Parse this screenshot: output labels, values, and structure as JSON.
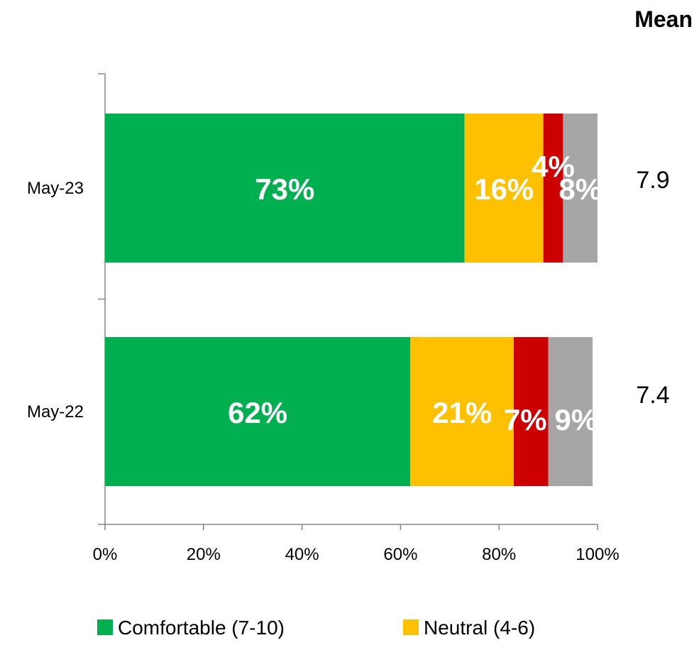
{
  "chart_data": {
    "type": "bar",
    "orientation": "horizontal",
    "stacked": true,
    "categories": [
      "May-23",
      "May-22"
    ],
    "series": [
      {
        "name": "Comfortable (7-10)",
        "color": "#00B050",
        "values": [
          73,
          62
        ],
        "labels": [
          "73%",
          "62%"
        ]
      },
      {
        "name": "Neutral (4-6)",
        "color": "#FFC000",
        "values": [
          16,
          21
        ],
        "labels": [
          "16%",
          "21%"
        ]
      },
      {
        "color": "#CC0000",
        "values": [
          4,
          7
        ],
        "labels": [
          "4%",
          "7%"
        ]
      },
      {
        "color": "#A6A6A6",
        "values": [
          8,
          9
        ],
        "labels": [
          "8%",
          "9%"
        ]
      }
    ],
    "xlim": [
      0,
      100
    ],
    "xticks": [
      "0%",
      "20%",
      "40%",
      "60%",
      "80%",
      "100%"
    ],
    "grid": false,
    "legend_position": "bottom",
    "mean_header": "Mean",
    "means": [
      "7.9",
      "7.4"
    ]
  }
}
